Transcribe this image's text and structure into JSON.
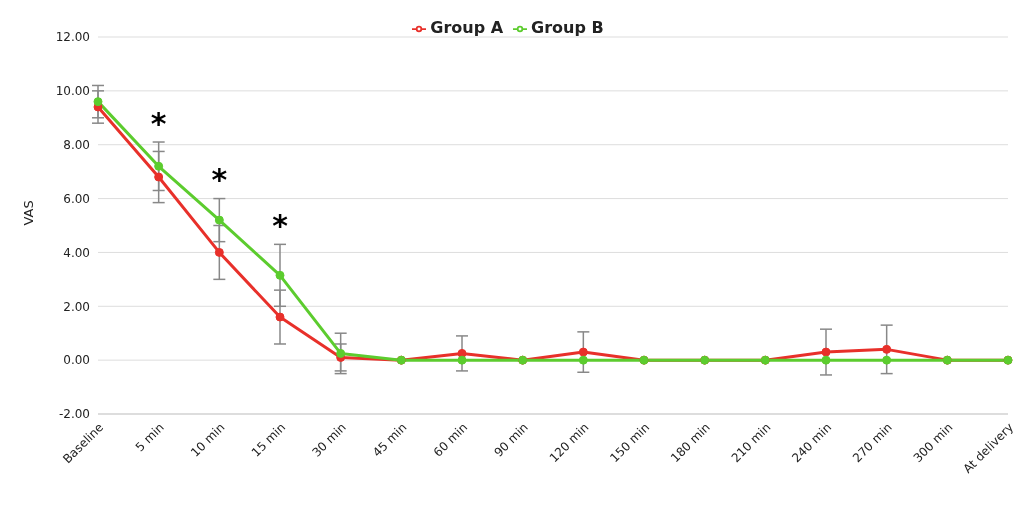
{
  "chart_data": {
    "type": "line",
    "ylabel": "VAS",
    "categories": [
      "Baseline",
      "5 min",
      "10 min",
      "15 min",
      "30 min",
      "45 min",
      "60 min",
      "90 min",
      "120 min",
      "150 min",
      "180 min",
      "210 min",
      "240 min",
      "270 min",
      "300 min",
      "At delivery"
    ],
    "series": [
      {
        "name": "Group A",
        "color": "#e8302a",
        "values": [
          9.4,
          6.8,
          4.0,
          1.6,
          0.1,
          0,
          0.25,
          0,
          0.3,
          0,
          0,
          0,
          0.3,
          0.4,
          0,
          0
        ],
        "errors": [
          0.6,
          0.95,
          1.0,
          1.0,
          0.5,
          null,
          0.65,
          null,
          0.75,
          null,
          null,
          null,
          0.85,
          0.9,
          null,
          null
        ]
      },
      {
        "name": "Group B",
        "color": "#5ccc2e",
        "values": [
          9.6,
          7.2,
          5.2,
          3.15,
          0.25,
          0,
          0,
          0,
          0,
          0,
          0,
          0,
          0,
          0,
          0,
          0
        ],
        "errors": [
          0.6,
          0.9,
          0.8,
          1.15,
          0.75,
          null,
          null,
          null,
          null,
          null,
          null,
          null,
          null,
          null,
          null,
          null
        ]
      }
    ],
    "ylim": [
      -2,
      12
    ],
    "yticks": [
      {
        "value": -2,
        "label": "-2.00"
      },
      {
        "value": 0,
        "label": "0.00"
      },
      {
        "value": 2,
        "label": "2.00"
      },
      {
        "value": 4,
        "label": "4.00"
      },
      {
        "value": 6,
        "label": "6.00"
      },
      {
        "value": 8,
        "label": "8.00"
      },
      {
        "value": 10,
        "label": "10.00"
      },
      {
        "value": 12,
        "label": "12.00"
      }
    ],
    "annotations": [
      "*",
      "*",
      "*"
    ],
    "grid": "y",
    "legend": "top",
    "marker": "circle",
    "line_style": "solid"
  }
}
